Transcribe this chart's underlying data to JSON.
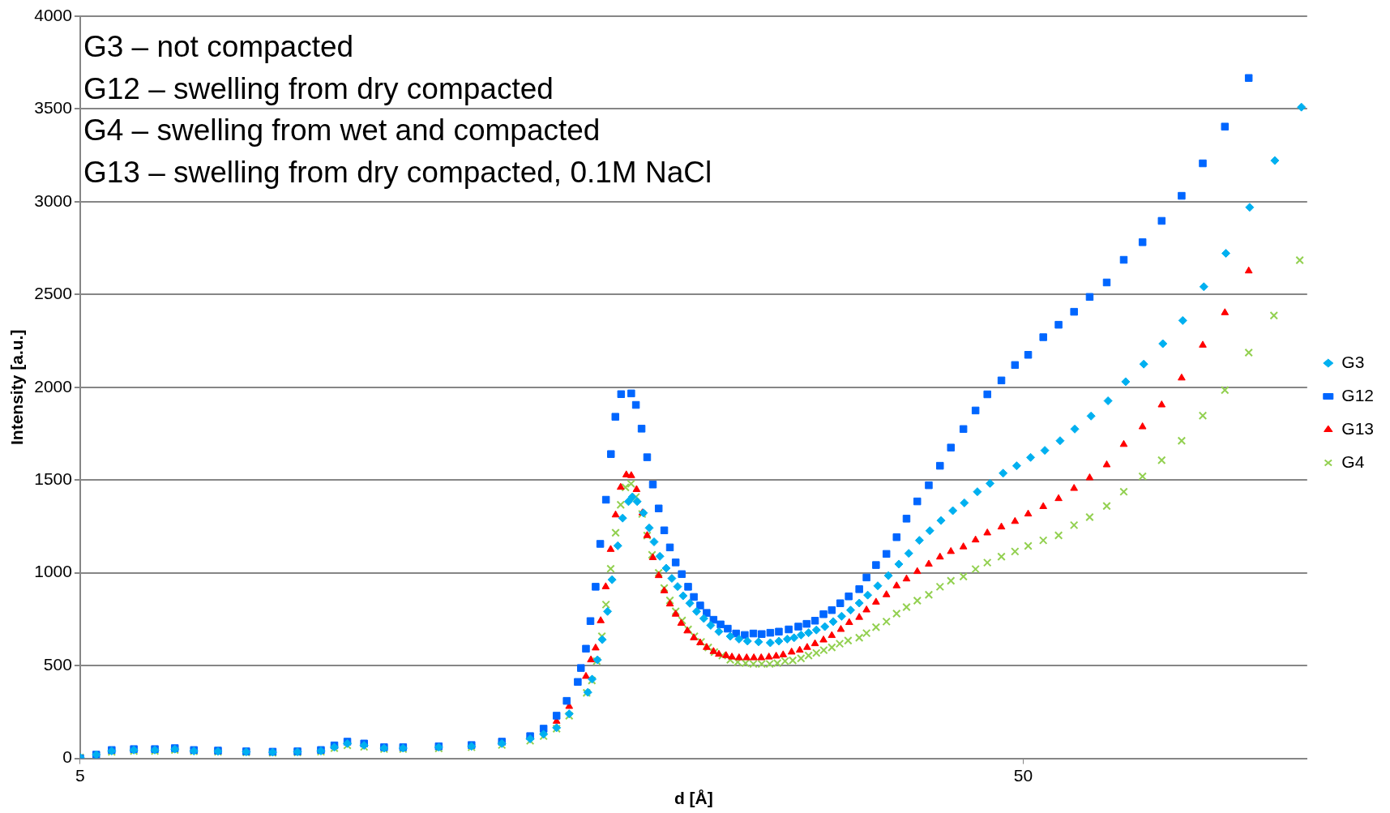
{
  "chart_data": {
    "type": "scatter",
    "xlabel": "d [Å]",
    "ylabel": "Intensity [a.u.]",
    "annotations": [
      "G3 – not compacted",
      "G12 – swelling from dry compacted",
      "G4 – swelling from wet and compacted",
      "G13 – swelling from dry compacted, 0.1M NaCl"
    ],
    "log": "x",
    "xlim": [
      5,
      100
    ],
    "xticks": [
      5,
      50
    ],
    "ylim": [
      0,
      4000
    ],
    "yticks": [
      0,
      500,
      1000,
      1500,
      2000,
      2500,
      3000,
      3500,
      4000
    ],
    "grid": "y",
    "legend": "right",
    "series": [
      {
        "name": "G3",
        "color": "#00b0f0",
        "marker": "diamond",
        "x": [
          5.0,
          5.2,
          5.4,
          5.7,
          6.0,
          6.3,
          6.6,
          7.0,
          7.5,
          8.0,
          8.5,
          9.0,
          9.3,
          9.6,
          10.0,
          10.5,
          11,
          12,
          13,
          14,
          15,
          15.5,
          16,
          16.5,
          17.27,
          17.45,
          17.68,
          17.89,
          18.12,
          18.32,
          18.58,
          18.8,
          19.07,
          19.25,
          19.48,
          19.78,
          20.06,
          20.3,
          20.59,
          20.91,
          21.2,
          21.5,
          21.79,
          22.15,
          22.52,
          22.92,
          23.31,
          23.78,
          24.45,
          24.98,
          25.5,
          26.2,
          26.96,
          27.53,
          28.1,
          28.57,
          29.06,
          29.6,
          30.17,
          30.8,
          31.44,
          32.09,
          32.8,
          33.5,
          34.2,
          35.05,
          35.97,
          36.9,
          37.8,
          38.8,
          39.8,
          40.9,
          42.1,
          43.3,
          44.7,
          46.1,
          47.6,
          49.2,
          50.9,
          52.7,
          54.7,
          56.7,
          59.0,
          61.5,
          64.2,
          67.1,
          70.3,
          73.8,
          77.7,
          82.0,
          86.9,
          92.4,
          98.6
        ],
        "values": [
          5,
          20,
          40,
          45,
          45,
          50,
          40,
          38,
          35,
          33,
          35,
          40,
          60,
          80,
          70,
          55,
          55,
          60,
          65,
          80,
          105,
          130,
          165,
          240,
          356,
          427,
          531,
          640,
          792,
          963,
          1146,
          1295,
          1384,
          1409,
          1384,
          1323,
          1242,
          1167,
          1089,
          1025,
          970,
          926,
          876,
          836,
          792,
          754,
          717,
          683,
          658,
          643,
          632,
          628,
          623,
          632,
          643,
          650,
          665,
          677,
          692,
          710,
          737,
          766,
          799,
          837,
          880,
          930,
          985,
          1047,
          1105,
          1175,
          1227,
          1282,
          1335,
          1377,
          1437,
          1482,
          1537,
          1577,
          1622,
          1660,
          1712,
          1775,
          1845,
          1927,
          2030,
          2125,
          2235,
          2360,
          2542,
          2722,
          2970,
          3222,
          3510
        ]
      },
      {
        "name": "G12",
        "color": "#0066ff",
        "marker": "square",
        "x": [
          5.0,
          5.2,
          5.4,
          5.7,
          6.0,
          6.3,
          6.6,
          7.0,
          7.5,
          8.0,
          8.5,
          9.0,
          9.3,
          9.6,
          10.0,
          10.5,
          11,
          12,
          13,
          14,
          15,
          15.5,
          16,
          16.4,
          16.85,
          16.98,
          17.19,
          17.38,
          17.6,
          17.8,
          18.05,
          18.27,
          18.47,
          18.73,
          19.2,
          19.42,
          19.69,
          19.96,
          20.24,
          20.53,
          20.81,
          21.1,
          21.4,
          21.72,
          22.06,
          22.37,
          22.72,
          23.08,
          23.47,
          23.88,
          24.3,
          24.8,
          25.33,
          25.87,
          26.4,
          26.96,
          27.53,
          28.2,
          28.87,
          29.46,
          30.07,
          30.7,
          31.33,
          31.98,
          32.65,
          33.5,
          34.1,
          34.9,
          35.8,
          36.7,
          37.6,
          38.6,
          39.7,
          40.8,
          41.9,
          43.2,
          44.5,
          45.8,
          47.4,
          49.0,
          50.6,
          52.5,
          54.5,
          56.6,
          58.8,
          61.3,
          63.9,
          66.9,
          70.1,
          73.6,
          77.5,
          81.8,
          86.7
        ],
        "values": [
          0,
          20,
          45,
          50,
          50,
          55,
          45,
          42,
          38,
          36,
          38,
          45,
          70,
          90,
          80,
          60,
          60,
          65,
          72,
          90,
          120,
          160,
          230,
          310,
          412,
          487,
          591,
          740,
          925,
          1156,
          1394,
          1640,
          1841,
          1963,
          1967,
          1905,
          1777,
          1623,
          1476,
          1347,
          1229,
          1137,
          1056,
          993,
          925,
          870,
          824,
          784,
          747,
          722,
          699,
          673,
          665,
          673,
          670,
          677,
          683,
          695,
          710,
          725,
          742,
          777,
          799,
          836,
          873,
          912,
          975,
          1042,
          1102,
          1192,
          1292,
          1385,
          1472,
          1577,
          1675,
          1775,
          1875,
          1962,
          2037,
          2120,
          2175,
          2270,
          2337,
          2407,
          2487,
          2565,
          2687,
          2782,
          2897,
          3032,
          3207,
          3405,
          3667
        ]
      },
      {
        "name": "G13",
        "color": "#ff0000",
        "marker": "triangle",
        "x": [
          5.0,
          5.2,
          5.4,
          5.7,
          6.0,
          6.3,
          6.6,
          7.0,
          7.5,
          8.0,
          8.5,
          9.0,
          9.3,
          9.6,
          10.0,
          10.5,
          11,
          12,
          13,
          14,
          15,
          15.5,
          16,
          16.5,
          17.19,
          17.4,
          17.6,
          17.82,
          18.04,
          18.26,
          18.48,
          18.71,
          18.97,
          19.2,
          19.45,
          19.73,
          19.96,
          20.24,
          20.53,
          20.81,
          21.1,
          21.4,
          21.69,
          22.02,
          22.37,
          22.72,
          23.08,
          23.47,
          23.78,
          24.2,
          24.55,
          24.98,
          25.45,
          25.9,
          26.37,
          26.87,
          27.35,
          27.82,
          28.4,
          28.97,
          29.5,
          30.07,
          30.7,
          31.33,
          32.03,
          32.69,
          33.5,
          34.1,
          34.9,
          35.8,
          36.7,
          37.6,
          38.6,
          39.7,
          40.8,
          41.9,
          43.2,
          44.5,
          45.8,
          47.4,
          49.0,
          50.6,
          52.5,
          54.5,
          56.6,
          58.8,
          61.3,
          63.9,
          66.9,
          70.1,
          73.6,
          77.5,
          81.8,
          86.7
        ],
        "values": [
          0,
          null,
          null,
          null,
          null,
          null,
          null,
          null,
          null,
          null,
          null,
          null,
          null,
          null,
          null,
          null,
          null,
          null,
          null,
          null,
          null,
          null,
          200,
          280,
          442,
          531,
          595,
          742,
          925,
          1126,
          1312,
          1461,
          1528,
          1524,
          1449,
          1323,
          1201,
          1082,
          985,
          903,
          832,
          777,
          728,
          687,
          650,
          623,
          598,
          576,
          561,
          554,
          546,
          542,
          542,
          542,
          542,
          546,
          551,
          558,
          573,
          583,
          598,
          618,
          638,
          662,
          695,
          732,
          760,
          800,
          842,
          882,
          930,
          967,
          1007,
          1047,
          1085,
          1115,
          1140,
          1177,
          1215,
          1247,
          1277,
          1317,
          1357,
          1400,
          1455,
          1512,
          1582,
          1692,
          1787,
          1905,
          2050,
          2227,
          2402,
          2627
        ]
      },
      {
        "name": "G4",
        "color": "#92d050",
        "marker": "cross",
        "x": [
          5.0,
          5.2,
          5.4,
          5.7,
          6.0,
          6.3,
          6.6,
          7.0,
          7.5,
          8.0,
          8.5,
          9.0,
          9.3,
          9.6,
          10.0,
          10.5,
          11,
          12,
          13,
          14,
          15,
          15.5,
          16,
          16.5,
          17.22,
          17.44,
          17.65,
          17.87,
          18.05,
          18.26,
          18.48,
          18.71,
          18.93,
          19.19,
          19.42,
          19.72,
          19.96,
          20.2,
          20.53,
          20.81,
          21.1,
          21.4,
          21.74,
          22.06,
          22.4,
          22.77,
          23.17,
          23.52,
          23.98,
          24.45,
          24.9,
          25.38,
          25.87,
          26.4,
          26.92,
          27.43,
          27.95,
          28.48,
          29.06,
          29.6,
          30.17,
          30.72,
          31.33,
          31.94,
          32.6,
          33.5,
          34.1,
          34.9,
          35.8,
          36.7,
          37.6,
          38.6,
          39.7,
          40.8,
          41.9,
          43.2,
          44.5,
          45.8,
          47.4,
          49.0,
          50.6,
          52.5,
          54.5,
          56.6,
          58.8,
          61.3,
          63.9,
          66.9,
          70.1,
          73.6,
          77.5,
          81.8,
          86.7,
          92.2,
          98.2
        ],
        "values": [
          5,
          15,
          35,
          40,
          40,
          45,
          38,
          35,
          32,
          30,
          32,
          36,
          55,
          70,
          62,
          50,
          50,
          54,
          60,
          72,
          95,
          120,
          160,
          230,
          353,
          420,
          524,
          658,
          829,
          1022,
          1216,
          1367,
          1461,
          1480,
          1409,
          1317,
          1201,
          1097,
          1000,
          918,
          851,
          792,
          743,
          695,
          658,
          628,
          598,
          573,
          554,
          531,
          519,
          513,
          509,
          509,
          509,
          513,
          524,
          528,
          539,
          554,
          568,
          583,
          598,
          618,
          635,
          650,
          675,
          707,
          737,
          780,
          815,
          850,
          882,
          925,
          957,
          980,
          1020,
          1055,
          1087,
          1115,
          1145,
          1175,
          1202,
          1257,
          1300,
          1360,
          1437,
          1520,
          1607,
          1712,
          1847,
          1985,
          2187,
          2387,
          2685
        ]
      }
    ]
  }
}
